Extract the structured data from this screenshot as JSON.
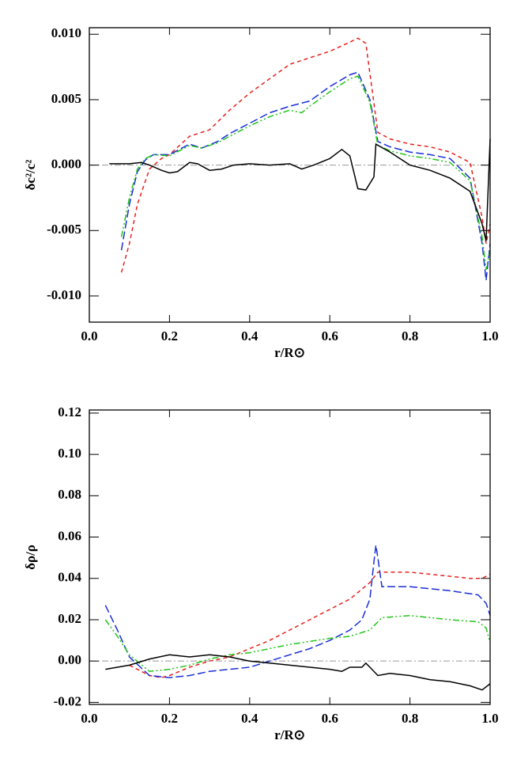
{
  "chart_data": [
    {
      "type": "line",
      "ylabel": "δc²/c²",
      "xlabel": "r/R⊙",
      "xlim": [
        0.0,
        1.0
      ],
      "ylim": [
        -0.012,
        0.0105
      ],
      "xticks": [
        {
          "value": 0,
          "label": "0.0"
        },
        {
          "value": 0.2,
          "label": "0.2"
        },
        {
          "value": 0.4,
          "label": "0.4"
        },
        {
          "value": 0.6,
          "label": "0.6"
        },
        {
          "value": 0.8,
          "label": "0.8"
        },
        {
          "value": 1,
          "label": "1.0"
        }
      ],
      "yticks": [
        {
          "value": -0.01,
          "label": "-0.010"
        },
        {
          "value": -0.005,
          "label": "-0.005"
        },
        {
          "value": 0,
          "label": "0.000"
        },
        {
          "value": 0.005,
          "label": "0.005"
        },
        {
          "value": 0.01,
          "label": "0.010"
        }
      ],
      "grid": false,
      "hline": 0,
      "series": [
        {
          "color": "#e8201c",
          "dash": "5,4",
          "x": [
            0.08,
            0.1,
            0.12,
            0.15,
            0.18,
            0.2,
            0.25,
            0.3,
            0.35,
            0.4,
            0.45,
            0.5,
            0.55,
            0.6,
            0.65,
            0.67,
            0.69,
            0.72,
            0.75,
            0.8,
            0.85,
            0.9,
            0.95,
            0.98,
            0.99,
            1.0
          ],
          "values": [
            -0.0082,
            -0.006,
            -0.003,
            -0.0003,
            0.0005,
            0.0008,
            0.0022,
            0.0027,
            0.0042,
            0.0055,
            0.0066,
            0.0077,
            0.0082,
            0.0087,
            0.0094,
            0.0097,
            0.0093,
            0.0025,
            0.002,
            0.0016,
            0.0014,
            0.001,
            0.0002,
            -0.004,
            -0.006,
            -0.0045
          ]
        },
        {
          "color": "#1a2fd6",
          "dash": "10,4",
          "x": [
            0.08,
            0.1,
            0.12,
            0.14,
            0.16,
            0.2,
            0.25,
            0.28,
            0.32,
            0.35,
            0.4,
            0.45,
            0.5,
            0.55,
            0.6,
            0.65,
            0.67,
            0.7,
            0.72,
            0.75,
            0.8,
            0.85,
            0.9,
            0.95,
            0.98,
            0.99,
            1.0
          ],
          "values": [
            -0.0065,
            -0.003,
            -0.0005,
            0.0004,
            0.0008,
            0.0008,
            0.0016,
            0.0013,
            0.0018,
            0.0024,
            0.0032,
            0.004,
            0.0045,
            0.0049,
            0.006,
            0.0069,
            0.0071,
            0.005,
            0.0018,
            0.0014,
            0.001,
            0.0008,
            0.0005,
            -0.001,
            -0.006,
            -0.0088,
            -0.006
          ]
        },
        {
          "color": "#22c41a",
          "dash": "8,3,2,3,2,3",
          "x": [
            0.08,
            0.1,
            0.12,
            0.14,
            0.16,
            0.2,
            0.25,
            0.28,
            0.32,
            0.35,
            0.4,
            0.45,
            0.5,
            0.53,
            0.55,
            0.6,
            0.65,
            0.67,
            0.7,
            0.72,
            0.75,
            0.8,
            0.85,
            0.9,
            0.95,
            0.98,
            0.99,
            1.0
          ],
          "values": [
            -0.0055,
            -0.0025,
            -0.0003,
            0.0005,
            0.0008,
            0.0007,
            0.0015,
            0.0013,
            0.0017,
            0.0022,
            0.003,
            0.0037,
            0.0042,
            0.004,
            0.0045,
            0.0056,
            0.0066,
            0.0068,
            0.0048,
            0.0015,
            0.0011,
            0.0007,
            0.0005,
            0.0002,
            -0.0012,
            -0.0055,
            -0.008,
            -0.0065
          ]
        },
        {
          "color": "#000000",
          "dash": "none",
          "x": [
            0.05,
            0.1,
            0.13,
            0.15,
            0.18,
            0.2,
            0.22,
            0.25,
            0.27,
            0.3,
            0.33,
            0.36,
            0.4,
            0.45,
            0.5,
            0.53,
            0.56,
            0.6,
            0.63,
            0.65,
            0.67,
            0.69,
            0.71,
            0.715,
            0.75,
            0.8,
            0.85,
            0.9,
            0.95,
            0.98,
            0.99,
            1.0
          ],
          "values": [
            0.0001,
            0.0001,
            0.0002,
            0.0,
            -0.0004,
            -0.0006,
            -0.0005,
            0.0002,
            0.0001,
            -0.0004,
            -0.0003,
            0.0,
            0.0001,
            0.0,
            0.0001,
            -0.0003,
            0.0,
            0.0005,
            0.0012,
            0.0007,
            -0.0018,
            -0.0019,
            -0.0009,
            0.0016,
            0.001,
            0.0,
            -0.0004,
            -0.001,
            -0.002,
            -0.0045,
            -0.0058,
            0.002
          ]
        }
      ]
    },
    {
      "type": "line",
      "ylabel": "δρ/ρ",
      "xlabel": "r/R⊙",
      "xlim": [
        0.0,
        1.0
      ],
      "ylim": [
        -0.021,
        0.1215
      ],
      "xticks": [
        {
          "value": 0,
          "label": "0.0"
        },
        {
          "value": 0.2,
          "label": "0.2"
        },
        {
          "value": 0.4,
          "label": "0.4"
        },
        {
          "value": 0.6,
          "label": "0.6"
        },
        {
          "value": 0.8,
          "label": "0.8"
        },
        {
          "value": 1,
          "label": "1.0"
        }
      ],
      "yticks": [
        {
          "value": -0.02,
          "label": "-0.02"
        },
        {
          "value": 0,
          "label": "0.00"
        },
        {
          "value": 0.02,
          "label": "0.02"
        },
        {
          "value": 0.04,
          "label": "0.04"
        },
        {
          "value": 0.06,
          "label": "0.06"
        },
        {
          "value": 0.08,
          "label": "0.08"
        },
        {
          "value": 0.1,
          "label": "0.10"
        },
        {
          "value": 0.12,
          "label": "0.12"
        }
      ],
      "grid": false,
      "hline": 0,
      "series": [
        {
          "color": "#e8201c",
          "dash": "5,4",
          "x": [
            0.1,
            0.15,
            0.18,
            0.2,
            0.25,
            0.3,
            0.35,
            0.4,
            0.45,
            0.5,
            0.55,
            0.6,
            0.65,
            0.7,
            0.72,
            0.8,
            0.85,
            0.9,
            0.95,
            0.98,
            1.0
          ],
          "values": [
            -0.002,
            -0.007,
            -0.008,
            -0.007,
            -0.003,
            0.0,
            0.002,
            0.006,
            0.01,
            0.015,
            0.02,
            0.025,
            0.03,
            0.038,
            0.043,
            0.043,
            0.042,
            0.041,
            0.04,
            0.04,
            0.042
          ]
        },
        {
          "color": "#1a2fd6",
          "dash": "10,4",
          "x": [
            0.04,
            0.07,
            0.1,
            0.15,
            0.2,
            0.25,
            0.3,
            0.35,
            0.4,
            0.45,
            0.5,
            0.55,
            0.6,
            0.65,
            0.68,
            0.7,
            0.71,
            0.715,
            0.72,
            0.73,
            0.8,
            0.9,
            0.97,
            0.99,
            1.0
          ],
          "values": [
            0.027,
            0.015,
            0.002,
            -0.007,
            -0.008,
            -0.007,
            -0.005,
            -0.004,
            -0.003,
            0.0,
            0.003,
            0.006,
            0.01,
            0.015,
            0.02,
            0.03,
            0.048,
            0.056,
            0.05,
            0.036,
            0.036,
            0.034,
            0.032,
            0.028,
            0.022
          ]
        },
        {
          "color": "#22c41a",
          "dash": "8,3,2,3,2,3",
          "x": [
            0.04,
            0.07,
            0.1,
            0.15,
            0.2,
            0.25,
            0.3,
            0.35,
            0.4,
            0.5,
            0.6,
            0.65,
            0.7,
            0.73,
            0.8,
            0.9,
            0.97,
            0.99,
            1.0
          ],
          "values": [
            0.02,
            0.012,
            0.003,
            -0.005,
            -0.004,
            -0.002,
            0.001,
            0.003,
            0.004,
            0.008,
            0.011,
            0.012,
            0.015,
            0.021,
            0.022,
            0.02,
            0.019,
            0.016,
            0.009
          ]
        },
        {
          "color": "#000000",
          "dash": "none",
          "x": [
            0.04,
            0.1,
            0.15,
            0.2,
            0.25,
            0.3,
            0.35,
            0.4,
            0.45,
            0.5,
            0.55,
            0.6,
            0.63,
            0.65,
            0.68,
            0.69,
            0.7,
            0.72,
            0.75,
            0.8,
            0.85,
            0.9,
            0.95,
            0.98,
            1.0
          ],
          "values": [
            -0.004,
            -0.002,
            0.001,
            0.003,
            0.002,
            0.003,
            0.002,
            0.0,
            -0.001,
            -0.002,
            -0.003,
            -0.004,
            -0.005,
            -0.003,
            -0.003,
            -0.001,
            -0.003,
            -0.007,
            -0.006,
            -0.007,
            -0.009,
            -0.01,
            -0.012,
            -0.014,
            -0.011
          ]
        }
      ]
    }
  ]
}
